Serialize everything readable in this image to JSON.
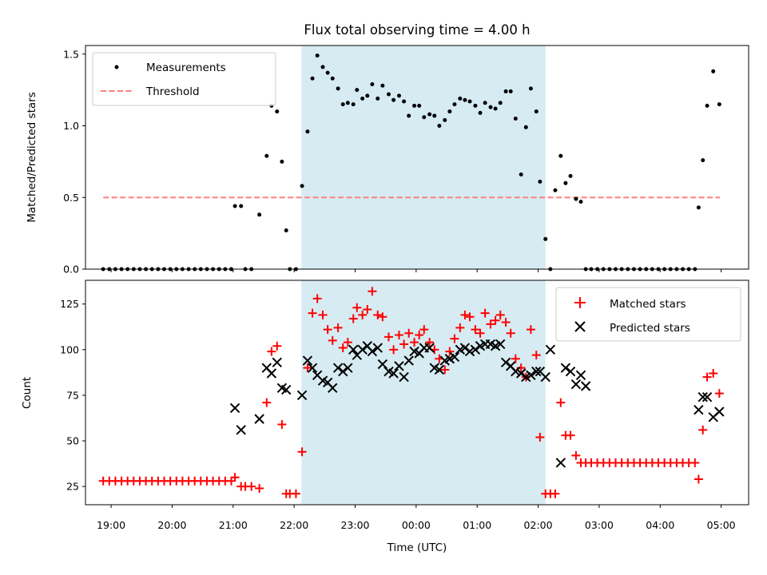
{
  "chart_data": [
    {
      "type": "scatter",
      "title": "Flux total observing time = 4.00 h",
      "xlabel": "",
      "ylabel": "Matched/Predicted stars",
      "xlim": [
        18.58,
        29.45
      ],
      "ylim": [
        0,
        1.56
      ],
      "yticks": [
        0,
        0.5,
        1.0,
        1.5
      ],
      "ytick_labels": [
        "0.0",
        "0.5",
        "1.0",
        "1.5"
      ],
      "shaded_interval": [
        22.12,
        26.12
      ],
      "legend": {
        "position": "upper left",
        "entries": [
          "Measurements",
          "Threshold"
        ]
      },
      "threshold": {
        "name": "Threshold",
        "value": 0.5,
        "x_range": [
          18.87,
          28.98
        ],
        "color": "#ff7f7f",
        "style": "dashed"
      },
      "series": [
        {
          "name": "Measurements",
          "marker": "dot",
          "color": "#000000",
          "x": [
            18.87,
            18.97,
            19.07,
            19.17,
            19.27,
            19.37,
            19.47,
            19.57,
            19.67,
            19.77,
            19.87,
            19.97,
            20.07,
            20.17,
            20.27,
            20.37,
            20.47,
            20.57,
            20.67,
            20.77,
            20.87,
            20.97,
            21.03,
            21.13,
            21.2,
            21.3,
            21.43,
            21.55,
            21.63,
            21.72,
            21.8,
            21.87,
            21.93,
            22.03,
            22.13,
            22.22,
            22.3,
            22.38,
            22.47,
            22.55,
            22.63,
            22.72,
            22.8,
            22.88,
            22.97,
            23.03,
            23.12,
            23.2,
            23.28,
            23.37,
            23.45,
            23.55,
            23.63,
            23.72,
            23.8,
            23.88,
            23.97,
            24.05,
            24.13,
            24.22,
            24.3,
            24.38,
            24.47,
            24.55,
            24.63,
            24.72,
            24.8,
            24.88,
            24.97,
            25.05,
            25.13,
            25.22,
            25.3,
            25.38,
            25.47,
            25.55,
            25.63,
            25.72,
            25.8,
            25.88,
            25.97,
            26.03,
            26.12,
            26.2,
            26.28,
            26.37,
            26.45,
            26.53,
            26.62,
            26.7,
            26.78,
            26.87,
            26.97,
            27.07,
            27.17,
            27.27,
            27.37,
            27.47,
            27.57,
            27.67,
            27.77,
            27.87,
            27.97,
            28.07,
            28.17,
            28.27,
            28.37,
            28.47,
            28.57,
            28.63,
            28.7,
            28.77,
            28.87,
            28.97
          ],
          "y": [
            0,
            0,
            0,
            0,
            0,
            0,
            0,
            0,
            0,
            0,
            0,
            0,
            0,
            0,
            0,
            0,
            0,
            0,
            0,
            0,
            0,
            0,
            0.44,
            0.44,
            0,
            0,
            0.38,
            0.79,
            1.14,
            1.1,
            0.75,
            0.27,
            0,
            0,
            0.58,
            0.96,
            1.33,
            1.49,
            1.41,
            1.37,
            1.33,
            1.26,
            1.15,
            1.16,
            1.15,
            1.25,
            1.19,
            1.21,
            1.29,
            1.19,
            1.28,
            1.22,
            1.18,
            1.21,
            1.17,
            1.07,
            1.14,
            1.14,
            1.06,
            1.08,
            1.07,
            1.0,
            1.04,
            1.1,
            1.15,
            1.19,
            1.18,
            1.17,
            1.14,
            1.09,
            1.16,
            1.13,
            1.12,
            1.16,
            1.24,
            1.24,
            1.05,
            0.66,
            0.99,
            1.26,
            1.1,
            0.61,
            0.21,
            0.0,
            0.55,
            0.79,
            0.6,
            0.65,
            0.49,
            0.47,
            0,
            0,
            0,
            0,
            0,
            0,
            0,
            0,
            0,
            0,
            0,
            0,
            0,
            0,
            0,
            0,
            0,
            0,
            0,
            0.43,
            0.76,
            1.14,
            1.38,
            1.15
          ]
        }
      ]
    },
    {
      "type": "scatter",
      "title": "",
      "xlabel": "Time (UTC)",
      "ylabel": "Count",
      "xlim": [
        18.58,
        29.45
      ],
      "ylim": [
        15,
        138
      ],
      "yticks": [
        25,
        50,
        75,
        100,
        125
      ],
      "ytick_labels": [
        "25",
        "50",
        "75",
        "100",
        "125"
      ],
      "xticks": [
        19,
        20,
        21,
        22,
        23,
        24,
        25,
        26,
        27,
        28,
        29
      ],
      "xtick_labels": [
        "19:00",
        "20:00",
        "21:00",
        "22:00",
        "23:00",
        "00:00",
        "01:00",
        "02:00",
        "03:00",
        "04:00",
        "05:00"
      ],
      "shaded_interval": [
        22.12,
        26.12
      ],
      "legend": {
        "position": "upper right",
        "entries": [
          "Matched stars",
          "Predicted stars"
        ]
      },
      "series": [
        {
          "name": "Matched stars",
          "marker": "plus",
          "color": "#ff0000",
          "x": [
            18.87,
            18.97,
            19.07,
            19.17,
            19.27,
            19.37,
            19.47,
            19.57,
            19.67,
            19.77,
            19.87,
            19.97,
            20.07,
            20.17,
            20.27,
            20.37,
            20.47,
            20.57,
            20.67,
            20.77,
            20.87,
            20.97,
            21.03,
            21.13,
            21.2,
            21.3,
            21.43,
            21.55,
            21.63,
            21.72,
            21.8,
            21.87,
            21.93,
            22.03,
            22.13,
            22.22,
            22.3,
            22.38,
            22.47,
            22.55,
            22.63,
            22.72,
            22.8,
            22.88,
            22.97,
            23.03,
            23.12,
            23.2,
            23.28,
            23.37,
            23.45,
            23.55,
            23.63,
            23.72,
            23.8,
            23.88,
            23.97,
            24.05,
            24.13,
            24.22,
            24.3,
            24.38,
            24.47,
            24.55,
            24.63,
            24.72,
            24.8,
            24.88,
            24.97,
            25.05,
            25.13,
            25.22,
            25.3,
            25.38,
            25.47,
            25.55,
            25.63,
            25.72,
            25.8,
            25.88,
            25.97,
            26.03,
            26.12,
            26.2,
            26.28,
            26.37,
            26.45,
            26.53,
            26.62,
            26.7,
            26.78,
            26.87,
            26.97,
            27.07,
            27.17,
            27.27,
            27.37,
            27.47,
            27.57,
            27.67,
            27.77,
            27.87,
            27.97,
            28.07,
            28.17,
            28.27,
            28.37,
            28.47,
            28.57,
            28.63,
            28.7,
            28.77,
            28.87,
            28.97
          ],
          "y": [
            28,
            28,
            28,
            28,
            28,
            28,
            28,
            28,
            28,
            28,
            28,
            28,
            28,
            28,
            28,
            28,
            28,
            28,
            28,
            28,
            28,
            28,
            30,
            25,
            25,
            25,
            24,
            71,
            99,
            102,
            59,
            21,
            21,
            21,
            44,
            90,
            120,
            128,
            119,
            111,
            105,
            112,
            101,
            104,
            117,
            123,
            119,
            122,
            132,
            119,
            118,
            107,
            100,
            108,
            103,
            109,
            104,
            108,
            111,
            104,
            100,
            95,
            89,
            99,
            106,
            112,
            119,
            118,
            111,
            109,
            120,
            114,
            116,
            119,
            115,
            109,
            95,
            90,
            85,
            111,
            97,
            52,
            21,
            21,
            21,
            71,
            53,
            53,
            42,
            38,
            38,
            38,
            38,
            38,
            38,
            38,
            38,
            38,
            38,
            38,
            38,
            38,
            38,
            38,
            38,
            38,
            38,
            38,
            38,
            29,
            56,
            85,
            87,
            76
          ]
        },
        {
          "name": "Predicted stars",
          "marker": "x",
          "color": "#000000",
          "x": [
            21.03,
            21.13,
            21.43,
            21.55,
            21.63,
            21.72,
            21.8,
            21.87,
            22.13,
            22.22,
            22.3,
            22.38,
            22.47,
            22.55,
            22.63,
            22.72,
            22.8,
            22.88,
            22.97,
            23.03,
            23.12,
            23.2,
            23.28,
            23.37,
            23.45,
            23.55,
            23.63,
            23.72,
            23.8,
            23.88,
            23.97,
            24.05,
            24.13,
            24.22,
            24.3,
            24.38,
            24.47,
            24.55,
            24.63,
            24.72,
            24.8,
            24.88,
            24.97,
            25.05,
            25.13,
            25.22,
            25.3,
            25.38,
            25.47,
            25.55,
            25.63,
            25.72,
            25.8,
            25.88,
            25.97,
            26.03,
            26.12,
            26.2,
            26.37,
            26.45,
            26.53,
            26.62,
            26.7,
            26.78,
            28.63,
            28.7,
            28.77,
            28.87,
            28.97
          ],
          "y": [
            68,
            56,
            62,
            90,
            87,
            93,
            79,
            78,
            75,
            94,
            90,
            86,
            83,
            82,
            79,
            90,
            88,
            90,
            100,
            97,
            100,
            102,
            99,
            101,
            92,
            88,
            87,
            91,
            85,
            94,
            99,
            98,
            101,
            101,
            90,
            89,
            94,
            95,
            96,
            100,
            101,
            99,
            100,
            102,
            103,
            103,
            102,
            103,
            93,
            91,
            88,
            87,
            85,
            86,
            88,
            88,
            85,
            100,
            38,
            90,
            88,
            81,
            86,
            80,
            67,
            74,
            74,
            63,
            66
          ]
        }
      ]
    }
  ]
}
